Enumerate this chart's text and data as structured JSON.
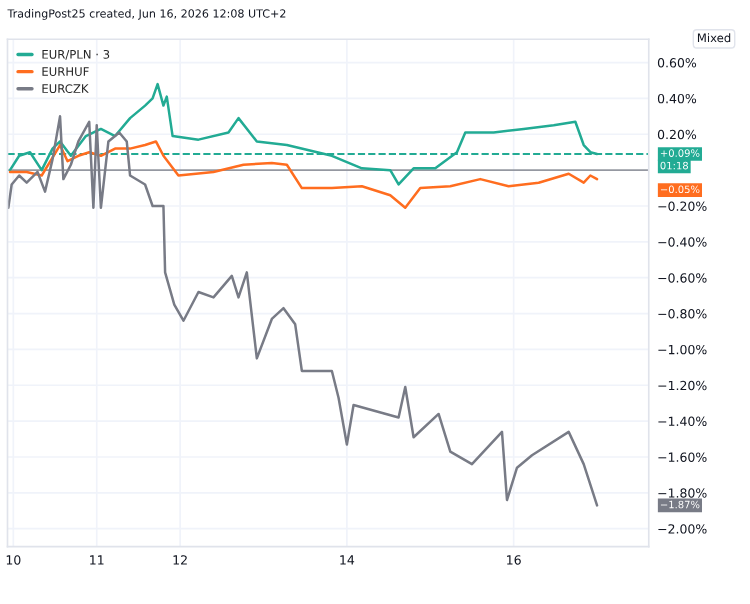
{
  "chart_data": {
    "type": "line",
    "title": "TradingPost25 created, Jun 16, 2026 12:08 UTC+2",
    "xlim": [
      9.93,
      17.62
    ],
    "xticks": [
      10,
      11,
      12,
      14,
      16
    ],
    "ylim": [
      -2.1,
      0.73
    ],
    "yticks": [
      {
        "value": 0.6,
        "label": "0.60%"
      },
      {
        "value": 0.4,
        "label": "0.40%"
      },
      {
        "value": 0.2,
        "label": "0.20%"
      },
      {
        "value": -0.2,
        "label": "−0.20%"
      },
      {
        "value": -0.4,
        "label": "−0.40%"
      },
      {
        "value": -0.6,
        "label": "−0.60%"
      },
      {
        "value": -0.8,
        "label": "−0.80%"
      },
      {
        "value": -1.0,
        "label": "−1.00%"
      },
      {
        "value": -1.2,
        "label": "−1.20%"
      },
      {
        "value": -1.4,
        "label": "−1.40%"
      },
      {
        "value": -1.6,
        "label": "−1.60%"
      },
      {
        "value": -1.8,
        "label": "−1.80%"
      },
      {
        "value": -2.0,
        "label": "−2.00%"
      }
    ],
    "grid": true,
    "legend": "top left",
    "marker": "none",
    "line_style": "solid",
    "ref_lines": [
      {
        "axis": "y",
        "value": 0,
        "color": "#9598a1",
        "line_style": "solid"
      },
      {
        "axis": "y",
        "value": 0.09,
        "color": "#22ab94",
        "line_style": "dashed"
      }
    ],
    "annotations": [
      "Mixed",
      "+0.09%",
      "01:18",
      "−0.05%",
      "−1.87%"
    ],
    "series": [
      {
        "name": "EUR/PLN · 3",
        "color": "#22ab94",
        "x": [
          9.96,
          10.07,
          10.2,
          10.34,
          10.47,
          10.56,
          10.69,
          10.87,
          11.05,
          11.22,
          11.4,
          11.58,
          11.67,
          11.73,
          11.8,
          11.84,
          11.91,
          12.22,
          12.58,
          12.7,
          12.92,
          13.28,
          13.82,
          14.18,
          14.52,
          14.62,
          14.8,
          15.06,
          15.32,
          15.42,
          15.76,
          16.12,
          16.48,
          16.74,
          16.84,
          16.92,
          17.0
        ],
        "values": [
          0,
          0.08,
          0.1,
          0,
          0.12,
          0.16,
          0.08,
          0.19,
          0.23,
          0.19,
          0.29,
          0.36,
          0.4,
          0.48,
          0.36,
          0.41,
          0.19,
          0.17,
          0.21,
          0.29,
          0.16,
          0.14,
          0.08,
          0.01,
          0,
          -0.08,
          0.01,
          0.01,
          0.1,
          0.21,
          0.21,
          0.23,
          0.25,
          0.27,
          0.14,
          0.1,
          0.09
        ]
      },
      {
        "name": "EURHUF",
        "color": "#ff6d1f",
        "x": [
          9.96,
          10.16,
          10.34,
          10.51,
          10.56,
          10.65,
          10.78,
          10.91,
          11.05,
          11.22,
          11.4,
          11.58,
          11.71,
          11.8,
          11.98,
          12.4,
          12.76,
          13.1,
          13.28,
          13.46,
          13.82,
          14.18,
          14.52,
          14.7,
          14.88,
          15.24,
          15.6,
          15.94,
          16.3,
          16.66,
          16.84,
          16.92,
          17.0
        ],
        "values": [
          -0.01,
          -0.01,
          -0.03,
          0.1,
          0.14,
          0.05,
          0.08,
          0.1,
          0.08,
          0.12,
          0.12,
          0.14,
          0.16,
          0.08,
          -0.03,
          -0.01,
          0.03,
          0.04,
          0.03,
          -0.1,
          -0.1,
          -0.09,
          -0.14,
          -0.21,
          -0.1,
          -0.09,
          -0.05,
          -0.09,
          -0.07,
          -0.02,
          -0.07,
          -0.03,
          -0.05
        ]
      },
      {
        "name": "EURCZK",
        "color": "#787b86",
        "x": [
          9.94,
          9.98,
          10.07,
          10.16,
          10.29,
          10.38,
          10.47,
          10.56,
          10.6,
          10.69,
          10.78,
          10.91,
          10.96,
          11.0,
          11.05,
          11.14,
          11.27,
          11.36,
          11.4,
          11.58,
          11.67,
          11.8,
          11.82,
          11.93,
          12.04,
          12.22,
          12.4,
          12.62,
          12.7,
          12.8,
          12.92,
          13.1,
          13.24,
          13.38,
          13.46,
          13.82,
          13.9,
          14.0,
          14.08,
          14.62,
          14.7,
          14.8,
          15.1,
          15.24,
          15.5,
          15.86,
          15.92,
          16.04,
          16.22,
          16.66,
          16.84,
          17.0
        ],
        "values": [
          -0.21,
          -0.08,
          -0.03,
          -0.07,
          -0.01,
          -0.12,
          0.06,
          0.3,
          -0.05,
          0.03,
          0.16,
          0.27,
          -0.21,
          0.25,
          -0.21,
          0.16,
          0.21,
          0.16,
          -0.03,
          -0.08,
          -0.2,
          -0.2,
          -0.57,
          -0.75,
          -0.84,
          -0.68,
          -0.71,
          -0.59,
          -0.71,
          -0.57,
          -1.05,
          -0.83,
          -0.77,
          -0.86,
          -1.12,
          -1.12,
          -1.27,
          -1.53,
          -1.31,
          -1.38,
          -1.21,
          -1.49,
          -1.36,
          -1.57,
          -1.64,
          -1.46,
          -1.84,
          -1.66,
          -1.59,
          -1.46,
          -1.64,
          -1.87
        ]
      }
    ]
  }
}
